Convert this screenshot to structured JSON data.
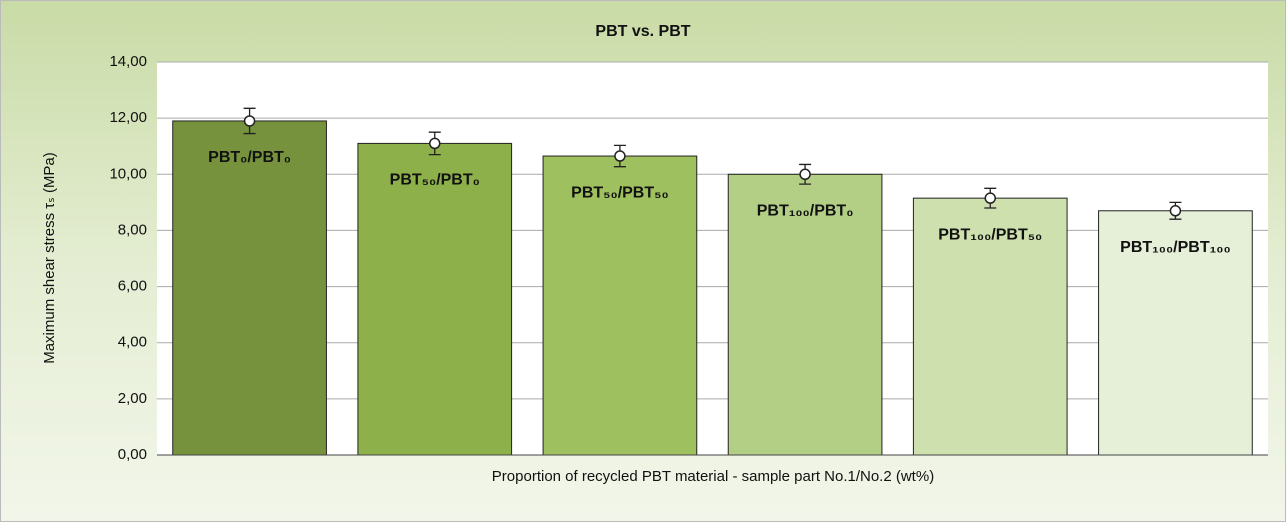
{
  "chart_data": {
    "type": "bar",
    "title": "PBT vs. PBT",
    "xlabel": "Proportion of recycled PBT material - sample part No.1/No.2  (wt%)",
    "ylabel": "Maximum shear stress  τₛ (MPa)",
    "categories": [
      "PBT₀/PBT₀",
      "PBT₅₀/PBT₀",
      "PBT₅₀/PBT₅₀",
      "PBT₁₀₀/PBT₀",
      "PBT₁₀₀/PBT₅₀",
      "PBT₁₀₀/PBT₁₀₀"
    ],
    "values": [
      11.9,
      11.1,
      10.65,
      10.0,
      9.15,
      8.7
    ],
    "errors": [
      0.45,
      0.4,
      0.38,
      0.35,
      0.35,
      0.3
    ],
    "colors": [
      "#76923c",
      "#8db04a",
      "#9fc05e",
      "#b3cf86",
      "#cfe0af",
      "#e6efd8"
    ],
    "ylim": [
      0,
      14
    ],
    "yticks": [
      {
        "value": 0,
        "label": "0,00"
      },
      {
        "value": 2,
        "label": "2,00"
      },
      {
        "value": 4,
        "label": "4,00"
      },
      {
        "value": 6,
        "label": "6,00"
      },
      {
        "value": 8,
        "label": "8,00"
      },
      {
        "value": 10,
        "label": "10,00"
      },
      {
        "value": 12,
        "label": "12,00"
      },
      {
        "value": 14,
        "label": "14,00"
      }
    ],
    "grid": true
  }
}
